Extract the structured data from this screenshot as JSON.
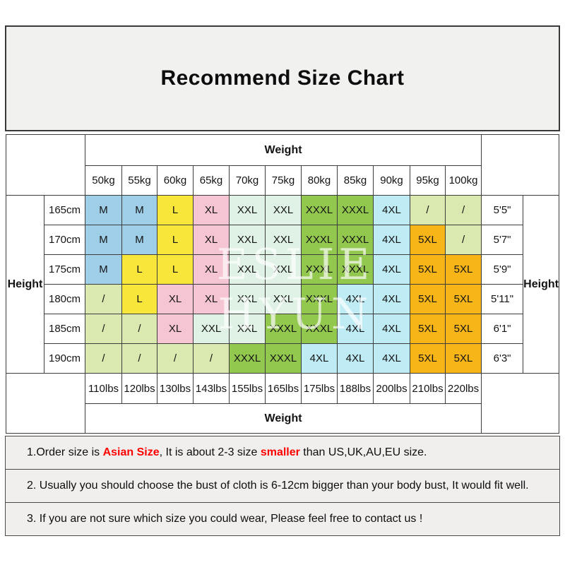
{
  "title": "Recommend Size Chart",
  "watermark": "ESLIE HYUN",
  "colors": {
    "M": "#9fcee9",
    "L": "#f8e73a",
    "XL": "#f6c5d3",
    "XXL": "#dff2e5",
    "XXXL": "#93c84f",
    "4XL": "#beebf4",
    "5XL": "#f8b517",
    "/": "#d9e9b0"
  },
  "chart_data": {
    "type": "table",
    "title": "Recommend Size Chart",
    "top_axis_label": "Weight",
    "bottom_axis_label": "Weight",
    "left_axis_label": "Height",
    "right_axis_label": "Height",
    "weight_kg": [
      "50kg",
      "55kg",
      "60kg",
      "65kg",
      "70kg",
      "75kg",
      "80kg",
      "85kg",
      "90kg",
      "95kg",
      "100kg"
    ],
    "weight_lbs": [
      "110lbs",
      "120lbs",
      "130lbs",
      "143lbs",
      "155lbs",
      "165lbs",
      "175lbs",
      "188lbs",
      "200lbs",
      "210lbs",
      "220lbs"
    ],
    "rows": [
      {
        "height_cm": "165cm",
        "height_ft": "5'5\"",
        "sizes": [
          "M",
          "M",
          "L",
          "XL",
          "XXL",
          "XXL",
          "XXXL",
          "XXXL",
          "4XL",
          "/",
          "/"
        ]
      },
      {
        "height_cm": "170cm",
        "height_ft": "5'7\"",
        "sizes": [
          "M",
          "M",
          "L",
          "XL",
          "XXL",
          "XXL",
          "XXXL",
          "XXXL",
          "4XL",
          "5XL",
          "/"
        ]
      },
      {
        "height_cm": "175cm",
        "height_ft": "5'9\"",
        "sizes": [
          "M",
          "L",
          "L",
          "XL",
          "XXL",
          "XXL",
          "XXXL",
          "XXXL",
          "4XL",
          "5XL",
          "5XL"
        ]
      },
      {
        "height_cm": "180cm",
        "height_ft": "5'11\"",
        "sizes": [
          "/",
          "L",
          "XL",
          "XL",
          "XXL",
          "XXL",
          "XXXL",
          "4XL",
          "4XL",
          "5XL",
          "5XL"
        ]
      },
      {
        "height_cm": "185cm",
        "height_ft": "6'1\"",
        "sizes": [
          "/",
          "/",
          "XL",
          "XXL",
          "XXL",
          "XXXL",
          "XXXL",
          "4XL",
          "4XL",
          "5XL",
          "5XL"
        ]
      },
      {
        "height_cm": "190cm",
        "height_ft": "6'3\"",
        "sizes": [
          "/",
          "/",
          "/",
          "/",
          "XXXL",
          "XXXL",
          "4XL",
          "4XL",
          "4XL",
          "5XL",
          "5XL"
        ]
      }
    ]
  },
  "notes": [
    {
      "parts": [
        {
          "text": "1.Order size is ",
          "style": "normal"
        },
        {
          "text": "Asian Size",
          "style": "red-bold"
        },
        {
          "text": ", It is about 2-3 size ",
          "style": "normal"
        },
        {
          "text": "smaller",
          "style": "red-bold"
        },
        {
          "text": " than US,UK,AU,EU size.",
          "style": "normal"
        }
      ]
    },
    {
      "parts": [
        {
          "text": "2. Usually you should choose the bust of cloth is 6-12cm bigger than your body bust, It would fit well.",
          "style": "normal"
        }
      ]
    },
    {
      "parts": [
        {
          "text": "3. If you are not sure which size you could wear, Please feel free to contact us !",
          "style": "normal"
        }
      ]
    }
  ]
}
